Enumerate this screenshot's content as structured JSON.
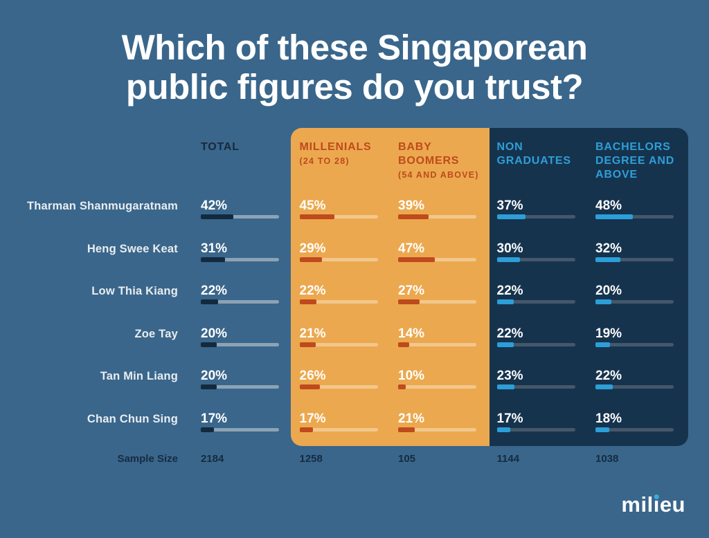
{
  "title": "Which of these Singaporean public figures do you trust?",
  "colors": {
    "background": "#3A668B",
    "orange_panel": "#ECA84E",
    "navy_panel": "#16334E",
    "orange_accent": "#BE4A1D",
    "blue_accent": "#2D9FD8",
    "dark_navy_text": "#152B40",
    "total_bar_fill": "#132A3E",
    "total_bar_track": "#8CA3B5",
    "orange_bar_track": "#F2C78D",
    "navy_bar_track": "#45576A",
    "white": "#FFFFFF"
  },
  "chart_data": {
    "type": "bar",
    "title": "Which of these Singaporean public figures do you trust?",
    "unit": "%",
    "bar_scale_max": 100,
    "legend_position": "top",
    "columns": [
      {
        "id": "total",
        "label": "TOTAL",
        "sublabel": "",
        "theme": "total",
        "sample_size": "2184"
      },
      {
        "id": "millenials",
        "label": "MILLENIALS",
        "sublabel": "(24 TO 28)",
        "theme": "orange",
        "sample_size": "1258"
      },
      {
        "id": "baby-boomers",
        "label": "BABY BOOMERS",
        "sublabel": "(54 AND ABOVE)",
        "theme": "orange",
        "sample_size": "105"
      },
      {
        "id": "non-graduates",
        "label": "NON GRADUATES",
        "sublabel": "",
        "theme": "blue",
        "sample_size": "1144"
      },
      {
        "id": "bachelors",
        "label": "BACHELORS DEGREE AND ABOVE",
        "sublabel": "",
        "theme": "blue",
        "sample_size": "1038"
      }
    ],
    "rows": [
      {
        "name": "Tharman Shanmugaratnam",
        "values": [
          42,
          45,
          39,
          37,
          48
        ]
      },
      {
        "name": "Heng Swee Keat",
        "values": [
          31,
          29,
          47,
          30,
          32
        ]
      },
      {
        "name": "Low Thia Kiang",
        "values": [
          22,
          22,
          27,
          22,
          20
        ]
      },
      {
        "name": "Zoe Tay",
        "values": [
          20,
          21,
          14,
          22,
          19
        ]
      },
      {
        "name": "Tan Min Liang",
        "values": [
          20,
          26,
          10,
          23,
          22
        ]
      },
      {
        "name": "Chan Chun Sing",
        "values": [
          17,
          17,
          21,
          17,
          18
        ]
      }
    ],
    "sample_size_label": "Sample Size"
  },
  "footer": {
    "logo_part1": "mil",
    "logo_dotless_i": "ı",
    "logo_part2": "eu",
    "logo_dot_color": "#3FA9DC"
  }
}
